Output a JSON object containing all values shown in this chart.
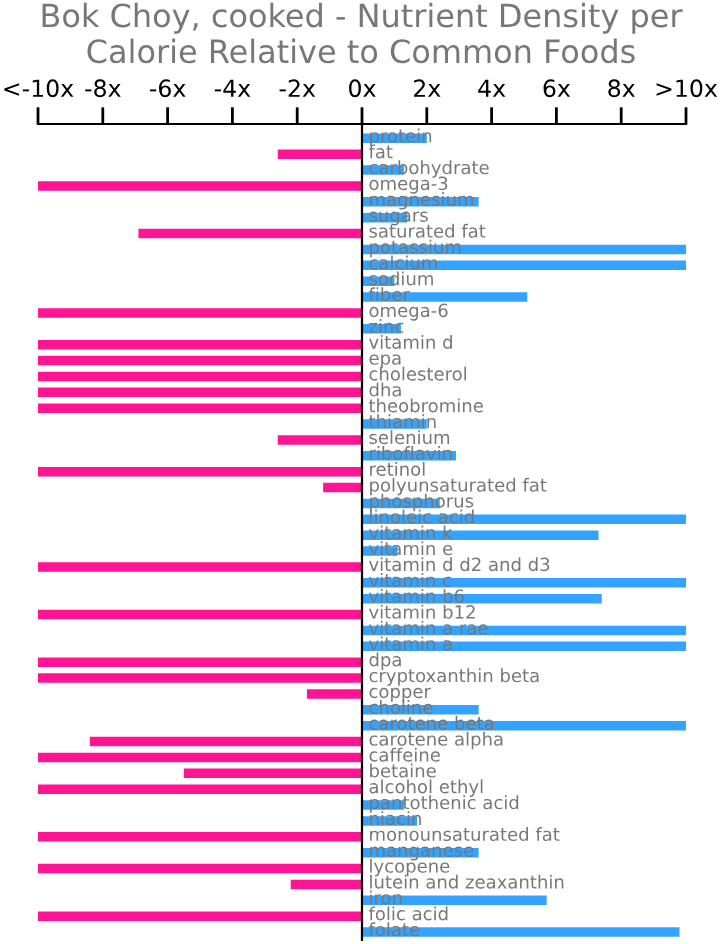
{
  "chart_data": {
    "type": "bar",
    "orientation": "horizontal",
    "title": "Bok Choy, cooked - Nutrient Density per Calorie Relative to Common Foods",
    "categories": [
      "protein",
      "fat",
      "carbohydrate",
      "omega-3",
      "magnesium",
      "sugars",
      "saturated fat",
      "potassium",
      "calcium",
      "sodium",
      "fiber",
      "omega-6",
      "zinc",
      "vitamin d",
      "epa",
      "cholesterol",
      "dha",
      "theobromine",
      "thiamin",
      "selenium",
      "riboflavin",
      "retinol",
      "polyunsaturated fat",
      "phosphorus",
      "linoleic acid",
      "vitamin k",
      "vitamin e",
      "vitamin d d2 and d3",
      "vitamin c",
      "vitamin b6",
      "vitamin b12",
      "vitamin a rae",
      "vitamin a",
      "dpa",
      "cryptoxanthin beta",
      "copper",
      "choline",
      "carotene beta",
      "carotene alpha",
      "caffeine",
      "betaine",
      "alcohol ethyl",
      "pantothenic acid",
      "niacin",
      "monounsaturated fat",
      "manganese",
      "lycopene",
      "lutein and zeaxanthin",
      "iron",
      "folic acid",
      "folate"
    ],
    "values": [
      2.0,
      -2.6,
      1.3,
      -10,
      3.6,
      1.4,
      -6.9,
      10,
      10,
      1.0,
      5.1,
      -10,
      1.2,
      -10,
      -10,
      -10,
      -10,
      -10,
      2.0,
      -2.6,
      2.9,
      -10,
      -1.2,
      2.4,
      10,
      7.3,
      1.1,
      -10,
      10,
      7.4,
      -10,
      10,
      10,
      -10,
      -10,
      -1.7,
      3.6,
      10,
      -8.4,
      -10,
      -5.5,
      -10,
      1.3,
      1.7,
      -10,
      3.6,
      -10,
      -2.2,
      5.7,
      -10,
      9.8
    ],
    "colors": [
      "#33a3ff",
      "#ff1493",
      "#33a3ff",
      "#ff1493",
      "#33a3ff",
      "#33a3ff",
      "#ff1493",
      "#33a3ff",
      "#33a3ff",
      "#33a3ff",
      "#33a3ff",
      "#ff1493",
      "#33a3ff",
      "#ff1493",
      "#ff1493",
      "#ff1493",
      "#ff1493",
      "#ff1493",
      "#33a3ff",
      "#ff1493",
      "#33a3ff",
      "#ff1493",
      "#ff1493",
      "#33a3ff",
      "#33a3ff",
      "#33a3ff",
      "#33a3ff",
      "#ff1493",
      "#33a3ff",
      "#33a3ff",
      "#ff1493",
      "#33a3ff",
      "#33a3ff",
      "#ff1493",
      "#ff1493",
      "#ff1493",
      "#33a3ff",
      "#33a3ff",
      "#ff1493",
      "#ff1493",
      "#ff1493",
      "#ff1493",
      "#33a3ff",
      "#33a3ff",
      "#ff1493",
      "#33a3ff",
      "#ff1493",
      "#ff1493",
      "#33a3ff",
      "#ff1493",
      "#33a3ff"
    ],
    "xlim": [
      -10,
      10
    ],
    "xticks": [
      {
        "value": -10,
        "label": "<-10x"
      },
      {
        "value": -8,
        "label": "-8x"
      },
      {
        "value": -6,
        "label": "-6x"
      },
      {
        "value": -4,
        "label": "-4x"
      },
      {
        "value": -2,
        "label": "-2x"
      },
      {
        "value": 0,
        "label": "0x"
      },
      {
        "value": 2,
        "label": "2x"
      },
      {
        "value": 4,
        "label": "4x"
      },
      {
        "value": 6,
        "label": "6x"
      },
      {
        "value": 8,
        "label": "8x"
      },
      {
        "value": 10,
        "label": ">10x"
      }
    ],
    "grid": false,
    "legend": false
  }
}
